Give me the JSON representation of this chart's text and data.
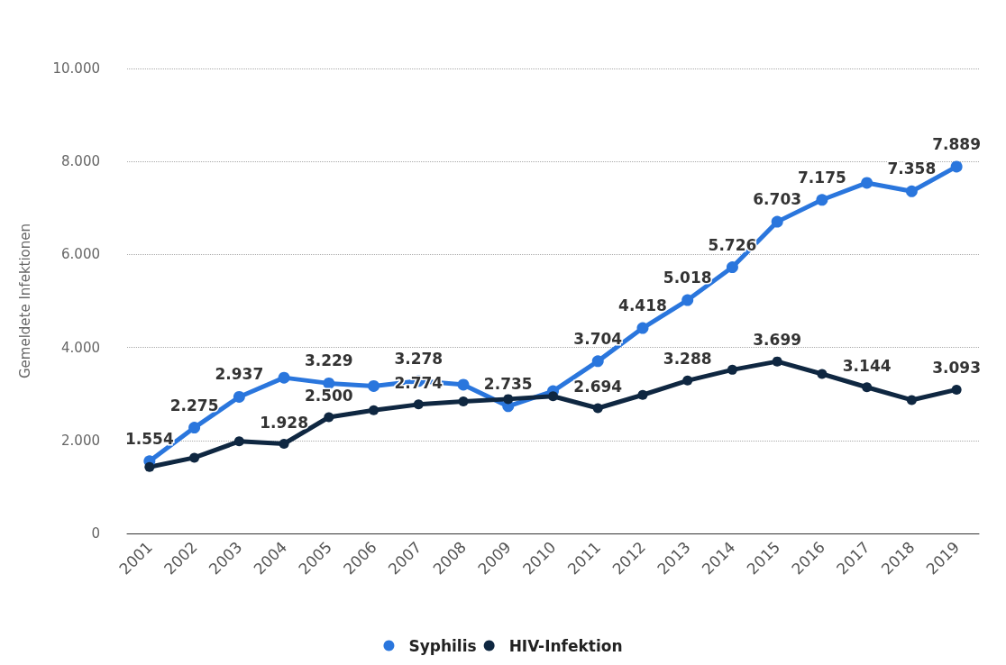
{
  "chart_data": {
    "type": "line",
    "ylabel": "Gemeldete Infektionen",
    "categories": [
      "2001",
      "2002",
      "2003",
      "2004",
      "2005",
      "2006",
      "2007",
      "2008",
      "2009",
      "2010",
      "2011",
      "2012",
      "2013",
      "2014",
      "2015",
      "2016",
      "2017",
      "2018",
      "2019"
    ],
    "series": [
      {
        "name": "Syphilis",
        "color": "#2a76dd",
        "values": [
          1554,
          2275,
          2937,
          3350,
          3229,
          3170,
          3278,
          3200,
          2735,
          3060,
          3704,
          4418,
          5018,
          5726,
          6703,
          7175,
          7540,
          7358,
          7889
        ],
        "value_labels": [
          "1.554",
          "2.275",
          "2.937",
          null,
          "3.229",
          null,
          "3.278",
          null,
          "2.735",
          null,
          "3.704",
          "4.418",
          "5.018",
          "5.726",
          "6.703",
          "7.175",
          null,
          "7.358",
          "7.889"
        ]
      },
      {
        "name": "HIV-Infektion",
        "color": "#0f2741",
        "values": [
          1430,
          1630,
          1980,
          1928,
          2500,
          2650,
          2774,
          2840,
          2890,
          2950,
          2694,
          2980,
          3288,
          3520,
          3699,
          3430,
          3144,
          2870,
          3093
        ],
        "value_labels": [
          null,
          null,
          null,
          "1.928",
          "2.500",
          null,
          "2.774",
          null,
          null,
          null,
          "2.694",
          null,
          "3.288",
          null,
          "3.699",
          null,
          "3.144",
          null,
          "3.093"
        ]
      }
    ],
    "ylim": [
      0,
      10000
    ],
    "yticks": [
      {
        "value": 0,
        "label": "0"
      },
      {
        "value": 2000,
        "label": "2.000"
      },
      {
        "value": 4000,
        "label": "4.000"
      },
      {
        "value": 6000,
        "label": "6.000"
      },
      {
        "value": 8000,
        "label": "8.000"
      },
      {
        "value": 10000,
        "label": "10.000"
      }
    ],
    "grid": "y",
    "legend": "bottom",
    "marker": "circle",
    "line_style": "solid"
  }
}
